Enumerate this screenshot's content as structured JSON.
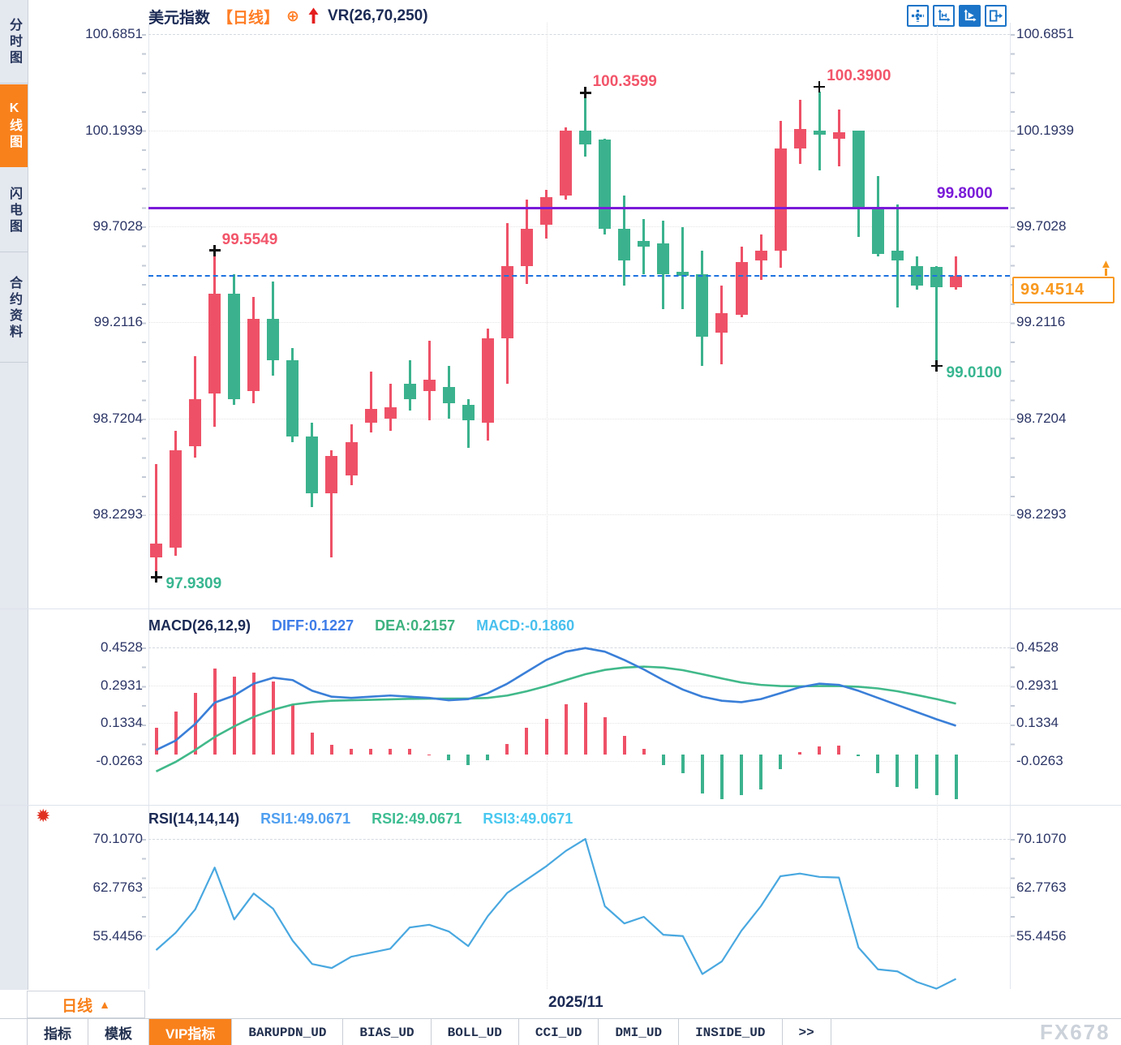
{
  "sidebar": {
    "tabs": [
      {
        "label": "分时图",
        "active": false
      },
      {
        "label": "K线图",
        "active": true
      },
      {
        "label": "闪电图",
        "active": false
      },
      {
        "label": "合约资料",
        "active": false
      }
    ]
  },
  "header": {
    "symbol": "美元指数",
    "period_tag": "【日线】",
    "add_icon": "⊕",
    "vr_label": "VR(26,70,250)"
  },
  "toolbar": {
    "icons": [
      {
        "name": "crosshair-move-icon",
        "active": false
      },
      {
        "name": "axis-scale-icon",
        "active": false
      },
      {
        "name": "axis-play-icon",
        "active": true
      },
      {
        "name": "exit-right-icon",
        "active": false
      }
    ]
  },
  "colors": {
    "up": "#ee5167",
    "down": "#3bb28d",
    "diff_line": "#3a7fd8",
    "dea_line": "#41b98a",
    "rsi_line": "#49a8e0",
    "high_label": "#f2556a",
    "low_label": "#38b690",
    "level_line": "#7a1ad8",
    "price_line": "#1d72e0",
    "accent_orange": "#f8811c",
    "text_navy": "#1b2a55"
  },
  "chart_data": [
    {
      "type": "candlestick",
      "title": "美元指数",
      "period": "日线",
      "y_ticks": [
        "100.6851",
        "100.1939",
        "99.7028",
        "99.2116",
        "98.7204",
        "98.2293"
      ],
      "candles": [
        [
          98.01,
          98.49,
          97.931,
          98.08
        ],
        [
          98.06,
          98.66,
          98.02,
          98.56
        ],
        [
          98.58,
          99.04,
          98.52,
          98.82
        ],
        [
          98.85,
          99.5549,
          98.68,
          99.36
        ],
        [
          99.36,
          99.46,
          98.79,
          98.82
        ],
        [
          98.86,
          99.34,
          98.8,
          99.23
        ],
        [
          99.23,
          99.42,
          98.94,
          99.02
        ],
        [
          99.02,
          99.08,
          98.6,
          98.63
        ],
        [
          98.63,
          98.7,
          98.27,
          98.34
        ],
        [
          98.34,
          98.56,
          98.01,
          98.53
        ],
        [
          98.43,
          98.69,
          98.38,
          98.6
        ],
        [
          98.7,
          98.96,
          98.65,
          98.77
        ],
        [
          98.72,
          98.9,
          98.66,
          98.78
        ],
        [
          98.9,
          99.02,
          98.76,
          98.82
        ],
        [
          98.86,
          99.12,
          98.71,
          98.92
        ],
        [
          98.88,
          98.99,
          98.72,
          98.8
        ],
        [
          98.79,
          98.82,
          98.57,
          98.71
        ],
        [
          98.7,
          99.18,
          98.61,
          99.13
        ],
        [
          99.13,
          99.72,
          98.9,
          99.5
        ],
        [
          99.5,
          99.84,
          99.41,
          99.69
        ],
        [
          99.71,
          99.89,
          99.64,
          99.85
        ],
        [
          99.86,
          100.21,
          99.84,
          100.19
        ],
        [
          100.19,
          100.3599,
          100.06,
          100.12
        ],
        [
          100.145,
          100.15,
          99.66,
          99.69
        ],
        [
          99.69,
          99.86,
          99.4,
          99.53
        ],
        [
          99.63,
          99.74,
          99.46,
          99.6
        ],
        [
          99.615,
          99.73,
          99.28,
          99.46
        ],
        [
          99.47,
          99.7,
          99.28,
          99.45
        ],
        [
          99.46,
          99.58,
          98.99,
          99.14
        ],
        [
          99.16,
          99.4,
          99.0,
          99.26
        ],
        [
          99.25,
          99.6,
          99.24,
          99.52
        ],
        [
          99.53,
          99.66,
          99.43,
          99.58
        ],
        [
          99.58,
          100.24,
          99.49,
          100.1
        ],
        [
          100.1,
          100.35,
          100.02,
          100.2
        ],
        [
          100.19,
          100.39,
          99.99,
          100.17
        ],
        [
          100.15,
          100.3,
          100.01,
          100.185
        ],
        [
          100.19,
          100.19,
          99.65,
          99.8
        ],
        [
          99.79,
          99.96,
          99.55,
          99.56
        ],
        [
          99.58,
          99.815,
          99.29,
          99.53
        ],
        [
          99.5,
          99.55,
          99.38,
          99.4
        ],
        [
          99.495,
          99.5,
          99.01,
          99.39
        ],
        [
          99.39,
          99.55,
          99.38,
          99.4514
        ]
      ],
      "markers": {
        "highs": [
          {
            "index": 3,
            "label": "99.5549"
          },
          {
            "index": 22,
            "label": "100.3599"
          },
          {
            "index": 34,
            "label": "100.3900"
          }
        ],
        "lows": [
          {
            "index": 0,
            "label": "97.9309"
          },
          {
            "index": 40,
            "label": "99.0100"
          }
        ]
      },
      "hline": {
        "value": 99.8,
        "label": "99.8000"
      },
      "current_price": 99.4514,
      "current_price_label": "99.4514",
      "price_marker_icon": "▲",
      "month_gridlines": [
        {
          "index": 20,
          "label": "2025/11"
        },
        {
          "index": 40,
          "label": ""
        }
      ]
    },
    {
      "type": "bar",
      "name": "MACD",
      "params": "MACD(26,12,9)",
      "legend": [
        {
          "label": "DIFF:0.1227",
          "color": "#3f7de8"
        },
        {
          "label": "DEA:0.2157",
          "color": "#3eb27f"
        },
        {
          "label": "MACD:-0.1860",
          "color": "#49c0ee"
        }
      ],
      "y_ticks": [
        "0.4528",
        "0.2931",
        "0.1334",
        "-0.0263"
      ],
      "histogram": [
        0.114,
        0.182,
        0.261,
        0.363,
        0.329,
        0.347,
        0.309,
        0.212,
        0.092,
        0.041,
        0.026,
        0.026,
        0.024,
        0.024,
        0.002,
        -0.023,
        -0.045,
        -0.023,
        0.047,
        0.114,
        0.152,
        0.212,
        0.22,
        0.158,
        0.079,
        0.024,
        -0.045,
        -0.079,
        -0.164,
        -0.188,
        -0.171,
        -0.147,
        -0.062,
        0.01,
        0.035,
        0.038,
        -0.005,
        -0.079,
        -0.137,
        -0.143,
        -0.171,
        -0.186
      ],
      "diff": [
        0.02,
        0.06,
        0.13,
        0.22,
        0.25,
        0.3,
        0.325,
        0.315,
        0.27,
        0.245,
        0.24,
        0.245,
        0.25,
        0.245,
        0.24,
        0.23,
        0.235,
        0.26,
        0.3,
        0.35,
        0.4,
        0.435,
        0.45,
        0.435,
        0.4,
        0.36,
        0.315,
        0.275,
        0.245,
        0.228,
        0.222,
        0.235,
        0.26,
        0.285,
        0.3,
        0.295,
        0.27,
        0.24,
        0.21,
        0.18,
        0.15,
        0.1227
      ],
      "dea": [
        -0.07,
        -0.03,
        0.02,
        0.075,
        0.12,
        0.16,
        0.19,
        0.212,
        0.222,
        0.228,
        0.23,
        0.232,
        0.234,
        0.236,
        0.237,
        0.237,
        0.237,
        0.24,
        0.25,
        0.268,
        0.29,
        0.315,
        0.34,
        0.358,
        0.368,
        0.372,
        0.368,
        0.357,
        0.34,
        0.322,
        0.305,
        0.295,
        0.29,
        0.289,
        0.29,
        0.29,
        0.287,
        0.28,
        0.268,
        0.252,
        0.235,
        0.2157
      ]
    },
    {
      "type": "line",
      "name": "RSI",
      "params": "RSI(14,14,14)",
      "icon": "✹",
      "legend": [
        {
          "label": "RSI1:49.0671",
          "color": "#4f9ff0"
        },
        {
          "label": "RSI2:49.0671",
          "color": "#3ebd92"
        },
        {
          "label": "RSI3:49.0671",
          "color": "#49c8f0"
        }
      ],
      "y_ticks": [
        "70.1070",
        "62.7763",
        "55.4456"
      ],
      "rsi": [
        53.4,
        56.0,
        59.5,
        65.8,
        58.0,
        61.9,
        59.6,
        54.8,
        51.3,
        50.7,
        52.4,
        53.0,
        53.6,
        56.8,
        57.2,
        56.2,
        54.0,
        58.5,
        62.0,
        64.0,
        66.0,
        68.3,
        70.1,
        60.0,
        57.4,
        58.4,
        55.7,
        55.5,
        49.8,
        51.7,
        56.3,
        60.0,
        64.5,
        64.9,
        64.4,
        64.3,
        53.8,
        50.5,
        50.2,
        48.6,
        47.6,
        49.07
      ]
    }
  ],
  "bottom": {
    "period_button": "日线",
    "period_arrow": "▲",
    "tabs": [
      {
        "label": "指标",
        "active": false
      },
      {
        "label": "模板",
        "active": false
      },
      {
        "label": "VIP指标",
        "active": true
      },
      {
        "label": "BARUPDN_UD",
        "active": false
      },
      {
        "label": "BIAS_UD",
        "active": false
      },
      {
        "label": "BOLL_UD",
        "active": false
      },
      {
        "label": "CCI_UD",
        "active": false
      },
      {
        "label": "DMI_UD",
        "active": false
      },
      {
        "label": "INSIDE_UD",
        "active": false
      },
      {
        "label": ">>",
        "active": false
      }
    ],
    "watermark": "FX678"
  }
}
